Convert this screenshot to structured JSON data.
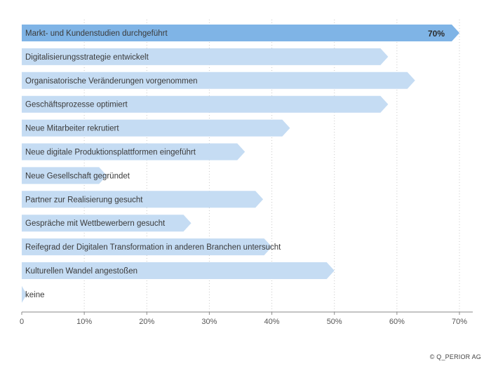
{
  "chart_data": {
    "type": "bar",
    "orientation": "horizontal",
    "categories": [
      "Markt- und Kundenstudien durchgeführt",
      "Digitalisierungsstrategie entwickelt",
      "Organisatorische Veränderungen vorgenommen",
      "Geschäftsprozesse optimiert",
      "Neue Mitarbeiter rekrutiert",
      "Neue digitale Produktionsplattformen eingeführt",
      "Neue Gesellschaft gegründet",
      "Partner zur Realisierung gesucht",
      "Gespräche mit Wettbewerbern gesucht",
      "Reifegrad der Digitalen Transformation in anderen Branchen untersucht",
      "Kulturellen Wandel angestoßen",
      "keine"
    ],
    "values": [
      70,
      58.6,
      62.9,
      58.6,
      42.9,
      35.7,
      13.6,
      38.6,
      27.1,
      40,
      50,
      0.8
    ],
    "value_labels": [
      "70%",
      "",
      "",
      "",
      "",
      "",
      "",
      "",
      "",
      "",
      "",
      ""
    ],
    "xlim": [
      0,
      70
    ],
    "xticks": [
      0,
      10,
      20,
      30,
      40,
      50,
      60,
      70
    ],
    "xtick_labels": [
      "0",
      "10%",
      "20%",
      "30%",
      "40%",
      "50%",
      "60%",
      "70%"
    ],
    "grid": "vertical-dotted",
    "title": "",
    "xlabel": "",
    "ylabel": "",
    "colors": {
      "highlight": "#7fb4e6",
      "bar": "#c5dcf3",
      "grid": "#c8c8c8",
      "axis": "#8a8a8a"
    }
  },
  "footer": {
    "copyright": "© Q_PERIOR AG"
  }
}
